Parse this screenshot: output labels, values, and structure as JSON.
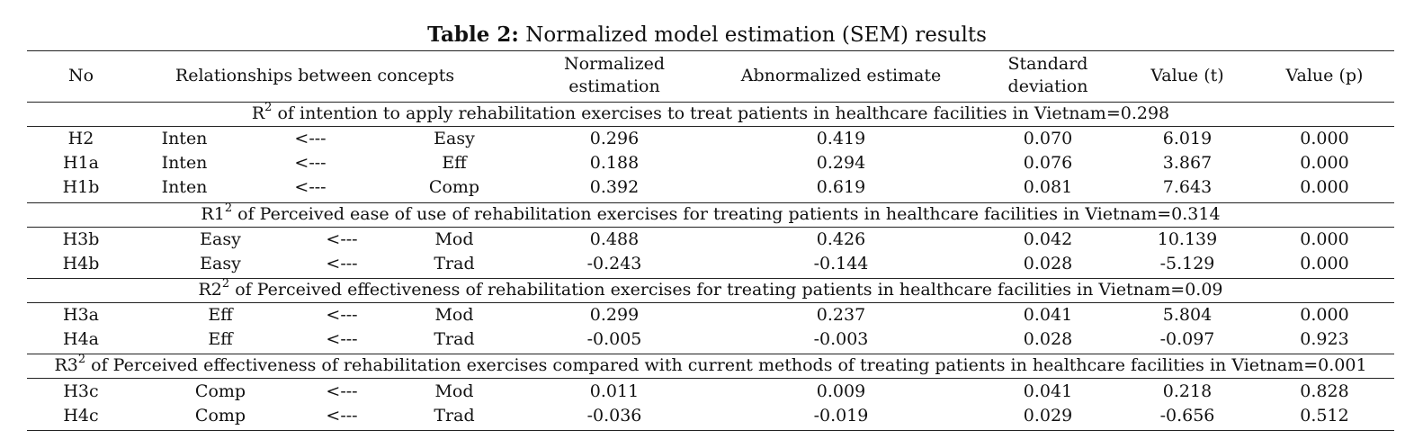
{
  "caption": {
    "label": "Table 2:",
    "text": "Normalized model estimation (SEM) results"
  },
  "headers": {
    "no": "No",
    "relationships": "Relationships between concepts",
    "norm_line1": "Normalized",
    "norm_line2": "estimation",
    "abnormalized": "Abnormalized estimate",
    "sd_line1": "Standard",
    "sd_line2": "deviation",
    "t": "Value (t)",
    "p": "Value (p)"
  },
  "sections": [
    {
      "title_prefix": "R",
      "title_sup": "2",
      "title_rest": " of intention to apply rehabilitation exercises to treat patients in healthcare facilities in Vietnam=0.298",
      "rows": [
        {
          "no": "H2",
          "dep": "Inten",
          "arrow": "<---",
          "indep": "Easy",
          "norm": "0.296",
          "abnorm": "0.419",
          "sd": "0.070",
          "t": "6.019",
          "p": "0.000"
        },
        {
          "no": "H1a",
          "dep": "Inten",
          "arrow": "<---",
          "indep": "Eff",
          "norm": "0.188",
          "abnorm": "0.294",
          "sd": "0.076",
          "t": "3.867",
          "p": "0.000"
        },
        {
          "no": "H1b",
          "dep": "Inten",
          "arrow": "<---",
          "indep": "Comp",
          "norm": "0.392",
          "abnorm": "0.619",
          "sd": "0.081",
          "t": "7.643",
          "p": "0.000"
        }
      ]
    },
    {
      "title_prefix": "R1",
      "title_sup": "2",
      "title_rest": " of Perceived ease of use of rehabilitation exercises for treating patients in healthcare facilities in Vietnam=0.314",
      "rows": [
        {
          "no": "H3b",
          "dep": "Easy",
          "arrow": "<---",
          "indep": "Mod",
          "norm": "0.488",
          "abnorm": "0.426",
          "sd": "0.042",
          "t": "10.139",
          "p": "0.000"
        },
        {
          "no": "H4b",
          "dep": "Easy",
          "arrow": "<---",
          "indep": "Trad",
          "norm": "-0.243",
          "abnorm": "-0.144",
          "sd": "0.028",
          "t": "-5.129",
          "p": "0.000"
        }
      ]
    },
    {
      "title_prefix": "R2",
      "title_sup": "2",
      "title_rest": " of Perceived effectiveness of rehabilitation exercises for treating patients in healthcare facilities in Vietnam=0.09",
      "rows": [
        {
          "no": "H3a",
          "dep": "Eff",
          "arrow": "<---",
          "indep": "Mod",
          "norm": "0.299",
          "abnorm": "0.237",
          "sd": "0.041",
          "t": "5.804",
          "p": "0.000"
        },
        {
          "no": "H4a",
          "dep": "Eff",
          "arrow": "<---",
          "indep": "Trad",
          "norm": "-0.005",
          "abnorm": "-0.003",
          "sd": "0.028",
          "t": "-0.097",
          "p": "0.923"
        }
      ]
    },
    {
      "title_prefix": "R3",
      "title_sup": "2",
      "title_rest": " of Perceived effectiveness of rehabilitation exercises compared with current methods of treating patients in healthcare facilities in Vietnam=0.001",
      "rows": [
        {
          "no": "H3c",
          "dep": "Comp",
          "arrow": "<---",
          "indep": "Mod",
          "norm": "0.011",
          "abnorm": "0.009",
          "sd": "0.041",
          "t": "0.218",
          "p": "0.828"
        },
        {
          "no": "H4c",
          "dep": "Comp",
          "arrow": "<---",
          "indep": "Trad",
          "norm": "-0.036",
          "abnorm": "-0.019",
          "sd": "0.029",
          "t": "-0.656",
          "p": "0.512"
        }
      ]
    }
  ]
}
